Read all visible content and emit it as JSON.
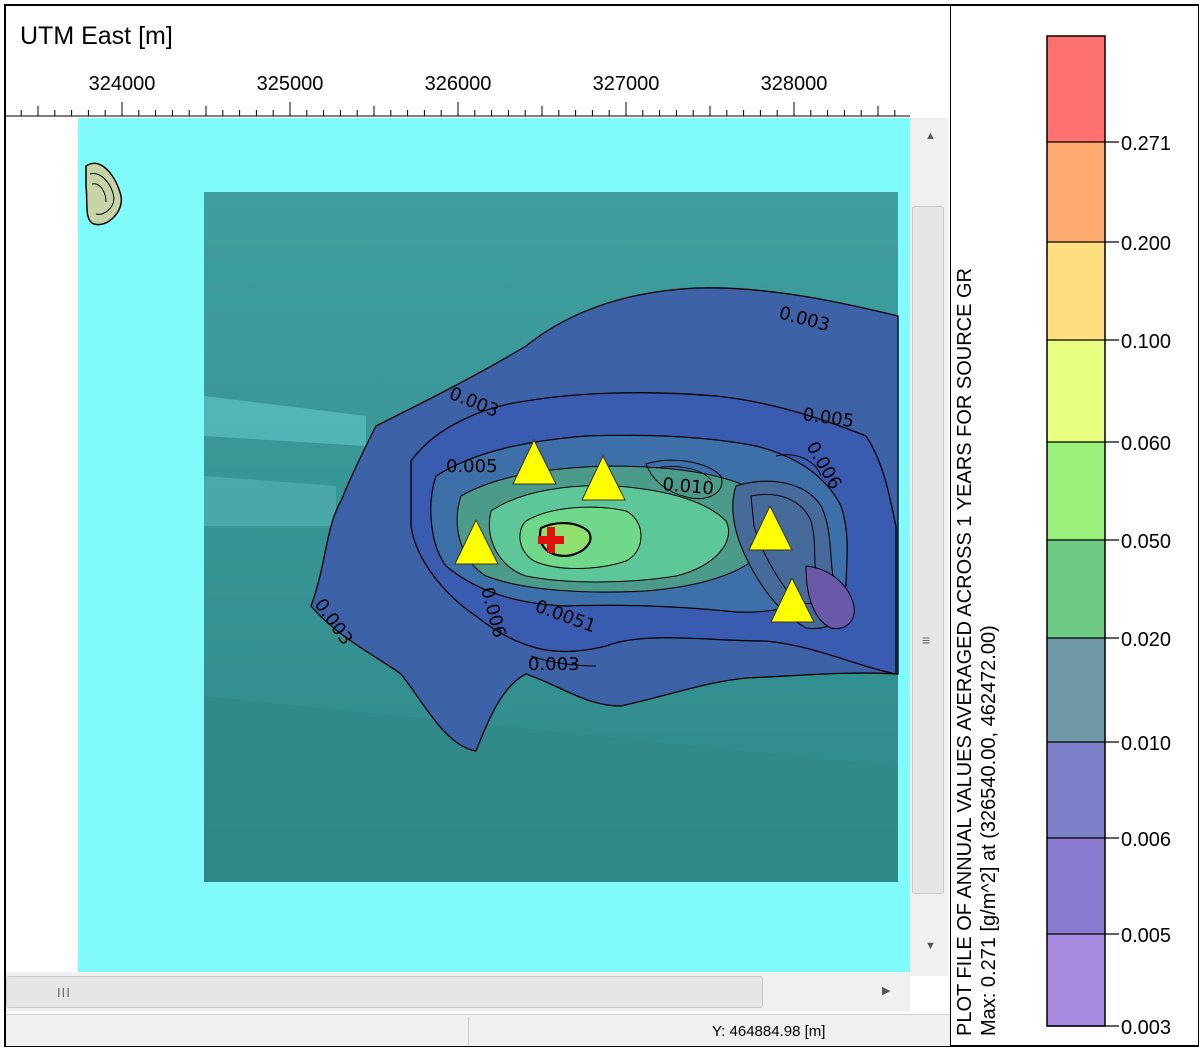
{
  "map": {
    "axis_title": "UTM East [m]",
    "x_ticks": [
      "324000",
      "325000",
      "326000",
      "327000",
      "328000"
    ],
    "contour_labels": [
      "0.003",
      "0.003",
      "0.005",
      "0.005",
      "0.005",
      "0.010",
      "0.006",
      "0.003",
      "0.006",
      "0.0051",
      "0.003"
    ],
    "receptor_marker": "yellow-triangle",
    "source_marker": "red-cross"
  },
  "status_bar": {
    "y_coordinate": "Y: 464884.98 [m]"
  },
  "scrollbars": {
    "horizontal_grip": "III",
    "vertical_grip": "≡"
  },
  "legend": {
    "title_line1": "PLOT FILE OF ANNUAL VALUES AVERAGED ACROSS 1 YEARS FOR SOURCE GR",
    "title_overlap": "g/m^2",
    "title_line2": "Max:  0.271  [g/m^2]  at  (326540.00, 462472.00)",
    "levels": [
      {
        "value": "0.271",
        "color": "#ff7070"
      },
      {
        "value": "0.200",
        "color": "#ffaa70"
      },
      {
        "value": "0.100",
        "color": "#ffde80"
      },
      {
        "value": "0.060",
        "color": "#e6ff80"
      },
      {
        "value": "0.050",
        "color": "#99f07a"
      },
      {
        "value": "0.020",
        "color": "#6fcb84"
      },
      {
        "value": "0.010",
        "color": "#6f98a6"
      },
      {
        "value": "0.006",
        "color": "#7b80c8"
      },
      {
        "value": "0.005",
        "color": "#8a7bd0"
      },
      {
        "value": "0.003",
        "color": "#a88ae0"
      }
    ]
  }
}
